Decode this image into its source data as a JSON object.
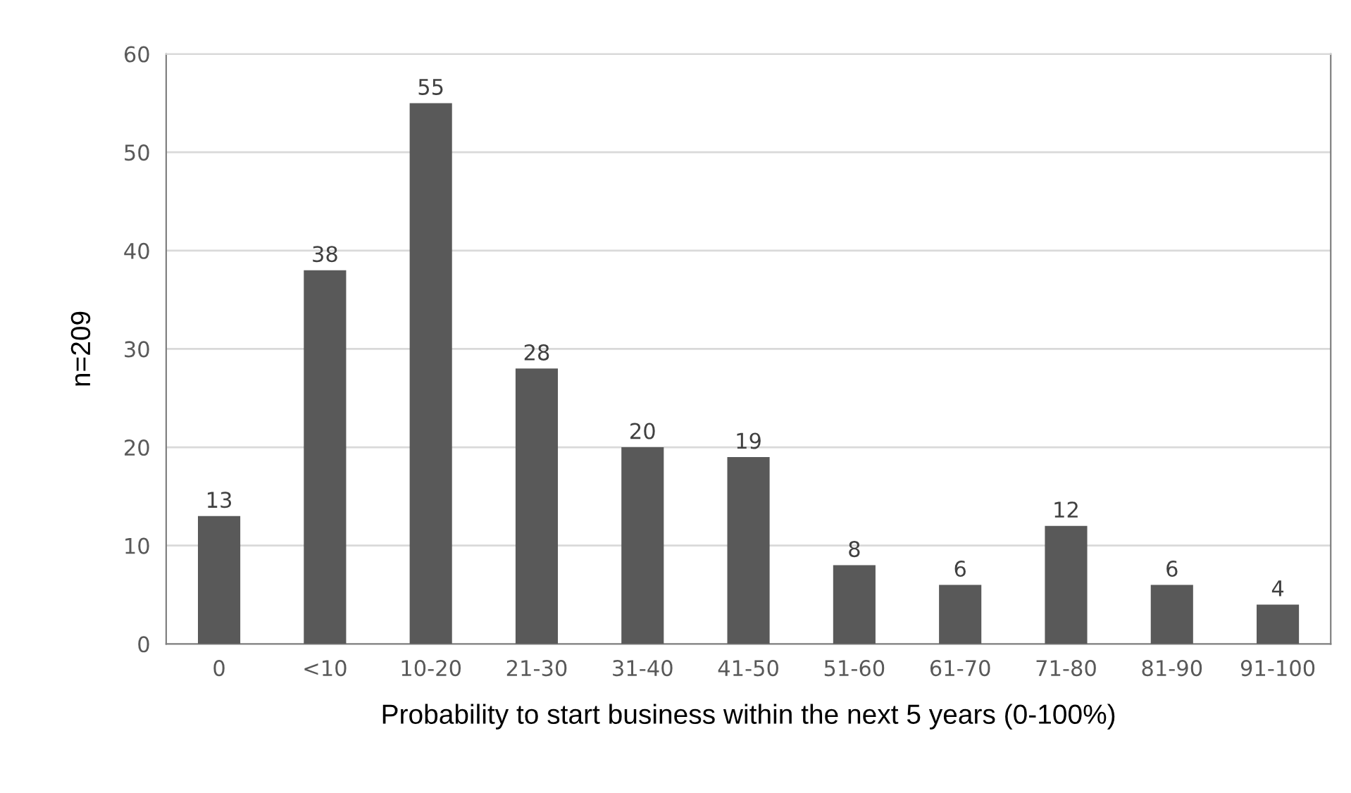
{
  "chart_data": {
    "type": "bar",
    "xlabel": "Probability to start business within the next 5 years (0-100%)",
    "ylabel": "n=209",
    "categories": [
      "0",
      "<10",
      "10-20",
      "21-30",
      "31-40",
      "41-50",
      "51-60",
      "61-70",
      "71-80",
      "81-90",
      "91-100"
    ],
    "values": [
      13,
      38,
      55,
      28,
      20,
      19,
      8,
      6,
      12,
      6,
      4
    ],
    "color": "#595959",
    "ylim": [
      0,
      60
    ],
    "yticks": [
      0,
      10,
      20,
      30,
      40,
      50,
      60
    ],
    "grid": "y",
    "data_labels": true
  }
}
